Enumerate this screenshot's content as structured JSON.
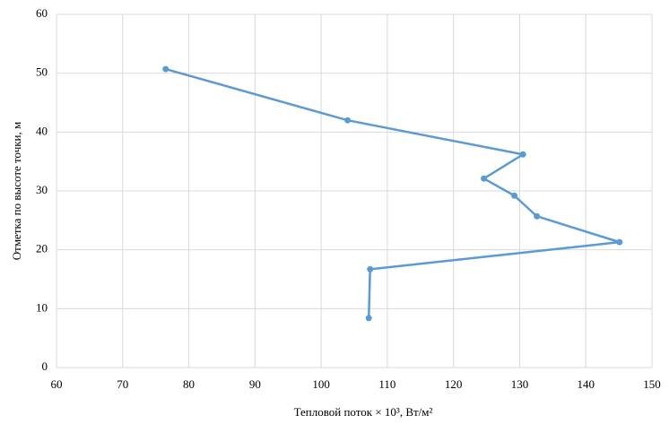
{
  "chart_data": {
    "type": "line",
    "x_label": "Тепловой поток × 10³, Вт/м²",
    "y_label": "Отметка по высоте точки, м",
    "x": [
      76.5,
      104,
      130.5,
      124.6,
      129.2,
      132.6,
      145.1,
      107.4,
      107.2
    ],
    "series": [
      {
        "name": "Тепловой поток",
        "color": "#5b9bd5",
        "values": [
          50.7,
          42,
          36.2,
          32.1,
          29.2,
          25.7,
          21.3,
          16.7,
          8.4
        ]
      }
    ],
    "xlim": [
      60,
      150
    ],
    "xticks": [
      60,
      70,
      80,
      90,
      100,
      110,
      120,
      130,
      140,
      150
    ],
    "ylim": [
      0,
      60
    ],
    "yticks": [
      0,
      10,
      20,
      30,
      40,
      50,
      60
    ],
    "grid": true
  }
}
